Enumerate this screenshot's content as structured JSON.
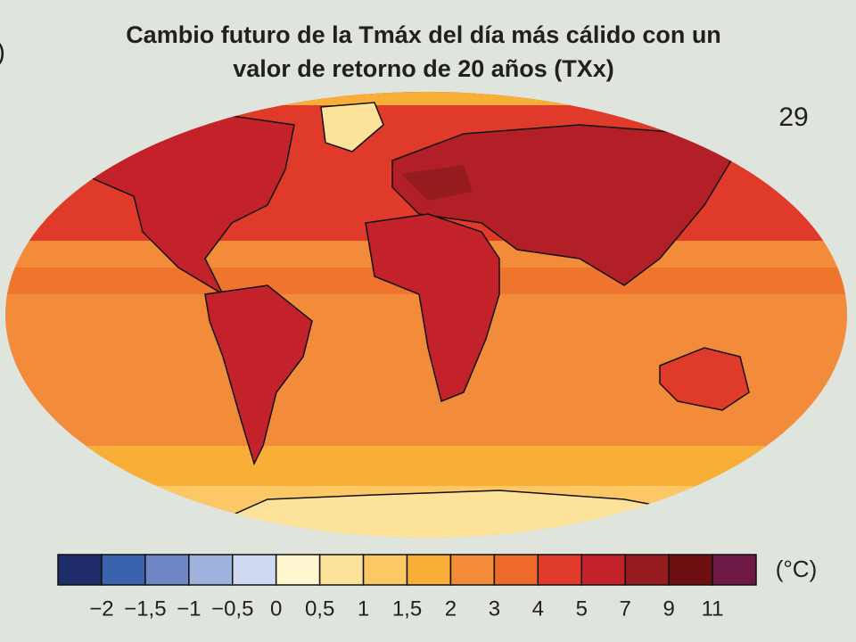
{
  "panel_label": ")",
  "title": [
    "Cambio futuro de la Tmáx del día más cálido con un",
    "valor de retorno de 20 años (TXx)"
  ],
  "model_count": "29",
  "colorbar": {
    "colors": [
      "#1f2d6b",
      "#3a62ad",
      "#6f86c4",
      "#9fb1dd",
      "#cfdaf0",
      "#fff6d0",
      "#fde29a",
      "#fcc865",
      "#f9ae38",
      "#f28c3a",
      "#ee6a2a",
      "#e03a2a",
      "#c3222a",
      "#961b1e",
      "#6e0f12",
      "#6e1845"
    ],
    "ticks": [
      "−2",
      "−1,5",
      "−1",
      "−0,5",
      "0",
      "0,5",
      "1",
      "1,5",
      "2",
      "3",
      "4",
      "5",
      "7",
      "9",
      "11"
    ],
    "unit": "(°C)"
  }
}
